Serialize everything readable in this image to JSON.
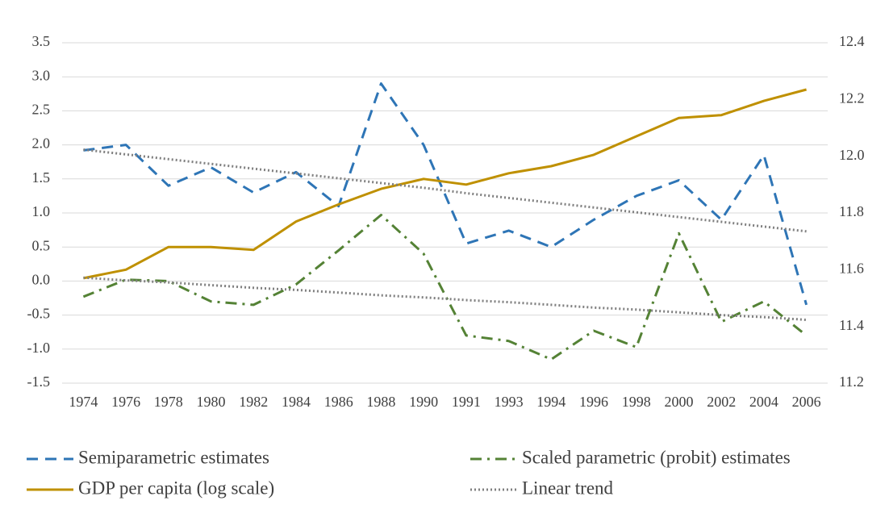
{
  "chart_data": {
    "type": "line",
    "categories": [
      "1974",
      "1976",
      "1978",
      "1980",
      "1982",
      "1984",
      "1986",
      "1988",
      "1990",
      "1991",
      "1993",
      "1994",
      "1996",
      "1998",
      "2000",
      "2002",
      "2004",
      "2006"
    ],
    "ylim": [
      -1.5,
      3.5
    ],
    "yticks": [
      -1.5,
      {
        "value": -1,
        "label": "-1.0"
      },
      -0.5,
      {
        "value": 0,
        "label": "0.0"
      },
      0.5,
      {
        "value": 1,
        "label": "1.0"
      },
      1.5,
      {
        "value": 2,
        "label": "2.0"
      },
      2.5,
      {
        "value": 3,
        "label": "3.0"
      },
      3.5
    ],
    "y2lim": [
      11.2,
      12.4
    ],
    "y2ticks": [
      11.2,
      11.4,
      11.6,
      11.8,
      {
        "value": 12,
        "label": "12.0"
      },
      12.2,
      12.4
    ],
    "grid": true,
    "legend": "bottom",
    "series": [
      {
        "name": "Semiparametric estimates",
        "color": "#2e75b6",
        "dash": "dashed",
        "values": [
          1.92,
          2.0,
          1.4,
          1.67,
          1.3,
          1.6,
          1.1,
          2.9,
          2.0,
          0.55,
          0.74,
          0.5,
          0.9,
          1.25,
          1.48,
          0.9,
          1.85,
          -0.35
        ]
      },
      {
        "name": "Scaled parametric (probit) estimates",
        "color": "#548235",
        "dash": "dashdot",
        "values": [
          -0.23,
          0.02,
          0.0,
          -0.3,
          -0.35,
          -0.05,
          0.45,
          0.97,
          0.4,
          -0.8,
          -0.88,
          -1.15,
          -0.73,
          -0.97,
          0.7,
          -0.6,
          -0.3,
          -0.8
        ]
      },
      {
        "name": "GDP per capita (log scale)",
        "color": "#bf9000",
        "dash": "solid",
        "axis": "y2",
        "values": [
          11.57,
          11.6,
          11.68,
          11.68,
          11.67,
          11.77,
          11.83,
          11.885,
          11.92,
          11.9,
          11.94,
          11.965,
          12.005,
          12.07,
          12.135,
          12.145,
          12.195,
          12.235
        ]
      },
      {
        "name": "Linear trend",
        "color": "#808080",
        "dash": "dotted",
        "lines": [
          [
            1.93,
            1.86,
            1.79,
            1.72,
            1.65,
            1.58,
            1.51,
            1.44,
            1.37,
            1.29,
            1.22,
            1.15,
            1.08,
            1.01,
            0.94,
            0.87,
            0.8,
            0.73
          ],
          [
            0.05,
            0.01,
            -0.02,
            -0.06,
            -0.1,
            -0.13,
            -0.17,
            -0.21,
            -0.24,
            -0.28,
            -0.31,
            -0.35,
            -0.39,
            -0.42,
            -0.46,
            -0.5,
            -0.53,
            -0.57
          ]
        ]
      }
    ]
  }
}
